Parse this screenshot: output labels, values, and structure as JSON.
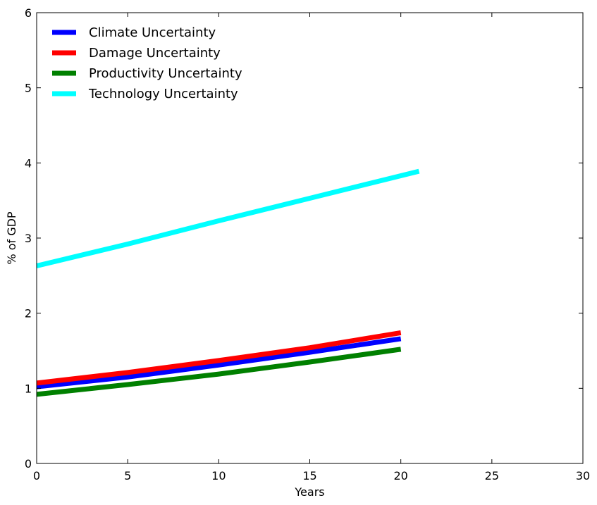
{
  "chart_data": {
    "type": "line",
    "title": "",
    "xlabel": "Years",
    "ylabel": "% of GDP",
    "xlim": [
      0,
      30
    ],
    "ylim": [
      0,
      6
    ],
    "xticks": [
      "0",
      "5",
      "10",
      "15",
      "20",
      "25",
      "30"
    ],
    "yticks": [
      "0",
      "1",
      "2",
      "3",
      "4",
      "5",
      "6"
    ],
    "grid": false,
    "legend_position": "upper-left",
    "series": [
      {
        "name": "Climate Uncertainty",
        "color": "#0000ff",
        "x": [
          0,
          5,
          10,
          15,
          20
        ],
        "y": [
          1.02,
          1.15,
          1.31,
          1.48,
          1.66
        ]
      },
      {
        "name": "Damage Uncertainty",
        "color": "#ff0000",
        "x": [
          0,
          5,
          10,
          15,
          20
        ],
        "y": [
          1.07,
          1.21,
          1.37,
          1.54,
          1.74
        ]
      },
      {
        "name": "Productivity Uncertainty",
        "color": "#008000",
        "x": [
          0,
          5,
          10,
          15,
          20
        ],
        "y": [
          0.92,
          1.05,
          1.19,
          1.35,
          1.52
        ]
      },
      {
        "name": "Technology Uncertainty",
        "color": "#00ffff",
        "x": [
          0,
          5,
          10,
          15,
          21
        ],
        "y": [
          2.63,
          2.92,
          3.23,
          3.53,
          3.89
        ]
      }
    ]
  }
}
